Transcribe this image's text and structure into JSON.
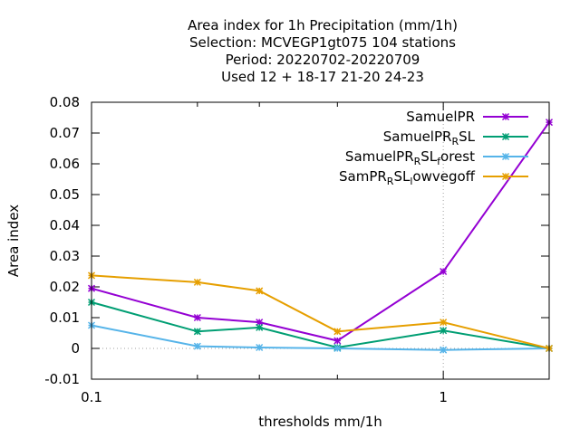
{
  "chart_data": {
    "type": "line",
    "title_lines": [
      "Area index  for 1h Precipitation (mm/1h)",
      "Selection: MCVEGP1gt075    104 stations",
      "Period: 20220702-20220709",
      "Used  12 + 18-17 21-20 24-23"
    ],
    "xlabel": "thresholds mm/1h",
    "ylabel": "Area index",
    "x_scale": "log",
    "xlim": [
      0.1,
      2
    ],
    "ylim": [
      -0.01,
      0.08
    ],
    "x_ticks": [
      0.1,
      0.2,
      0.3,
      0.5,
      1,
      2
    ],
    "x_tick_labels": [
      {
        "value": 0.1,
        "label": "0.1"
      },
      {
        "value": 1,
        "label": "1"
      }
    ],
    "y_ticks": [
      -0.01,
      0,
      0.01,
      0.02,
      0.03,
      0.04,
      0.05,
      0.06,
      0.07,
      0.08
    ],
    "y_tick_labels": [
      "-0.01",
      "0",
      "0.01",
      "0.02",
      "0.03",
      "0.04",
      "0.05",
      "0.06",
      "0.07",
      "0.08"
    ],
    "grid": "dotted lines at x=1 and y=0",
    "legend_position": "top-right",
    "x": [
      0.1,
      0.2,
      0.3,
      0.5,
      1,
      2
    ],
    "series": [
      {
        "name": "SamuelPR",
        "legend_parts": [
          [
            "SamuelPR",
            ""
          ]
        ],
        "color": "#9400d3",
        "values": [
          0.0195,
          0.01,
          0.0085,
          0.0025,
          0.025,
          0.0735
        ]
      },
      {
        "name": "SamuelPR_RSL",
        "legend_parts": [
          [
            "SamuelPR",
            ""
          ],
          [
            "R",
            "sub"
          ],
          [
            "SL",
            ""
          ]
        ],
        "color": "#009e73",
        "values": [
          0.015,
          0.0055,
          0.0068,
          0.0003,
          0.0058,
          0.0
        ]
      },
      {
        "name": "SamuelPR_RSL_forest",
        "legend_parts": [
          [
            "SamuelPR",
            ""
          ],
          [
            "R",
            "sub"
          ],
          [
            "SL",
            ""
          ],
          [
            "f",
            "sub"
          ],
          [
            "orest",
            ""
          ]
        ],
        "color": "#56b4e9",
        "values": [
          0.0075,
          0.0007,
          0.0003,
          0.0,
          -0.0005,
          0.0
        ]
      },
      {
        "name": "SamPR_RSL_lowvegoff",
        "legend_parts": [
          [
            "SamPR",
            ""
          ],
          [
            "R",
            "sub"
          ],
          [
            "SL",
            ""
          ],
          [
            "l",
            "sub"
          ],
          [
            "owvegoff",
            ""
          ]
        ],
        "color": "#e69f00",
        "values": [
          0.0237,
          0.0215,
          0.0187,
          0.0055,
          0.0085,
          0.0
        ]
      }
    ]
  }
}
